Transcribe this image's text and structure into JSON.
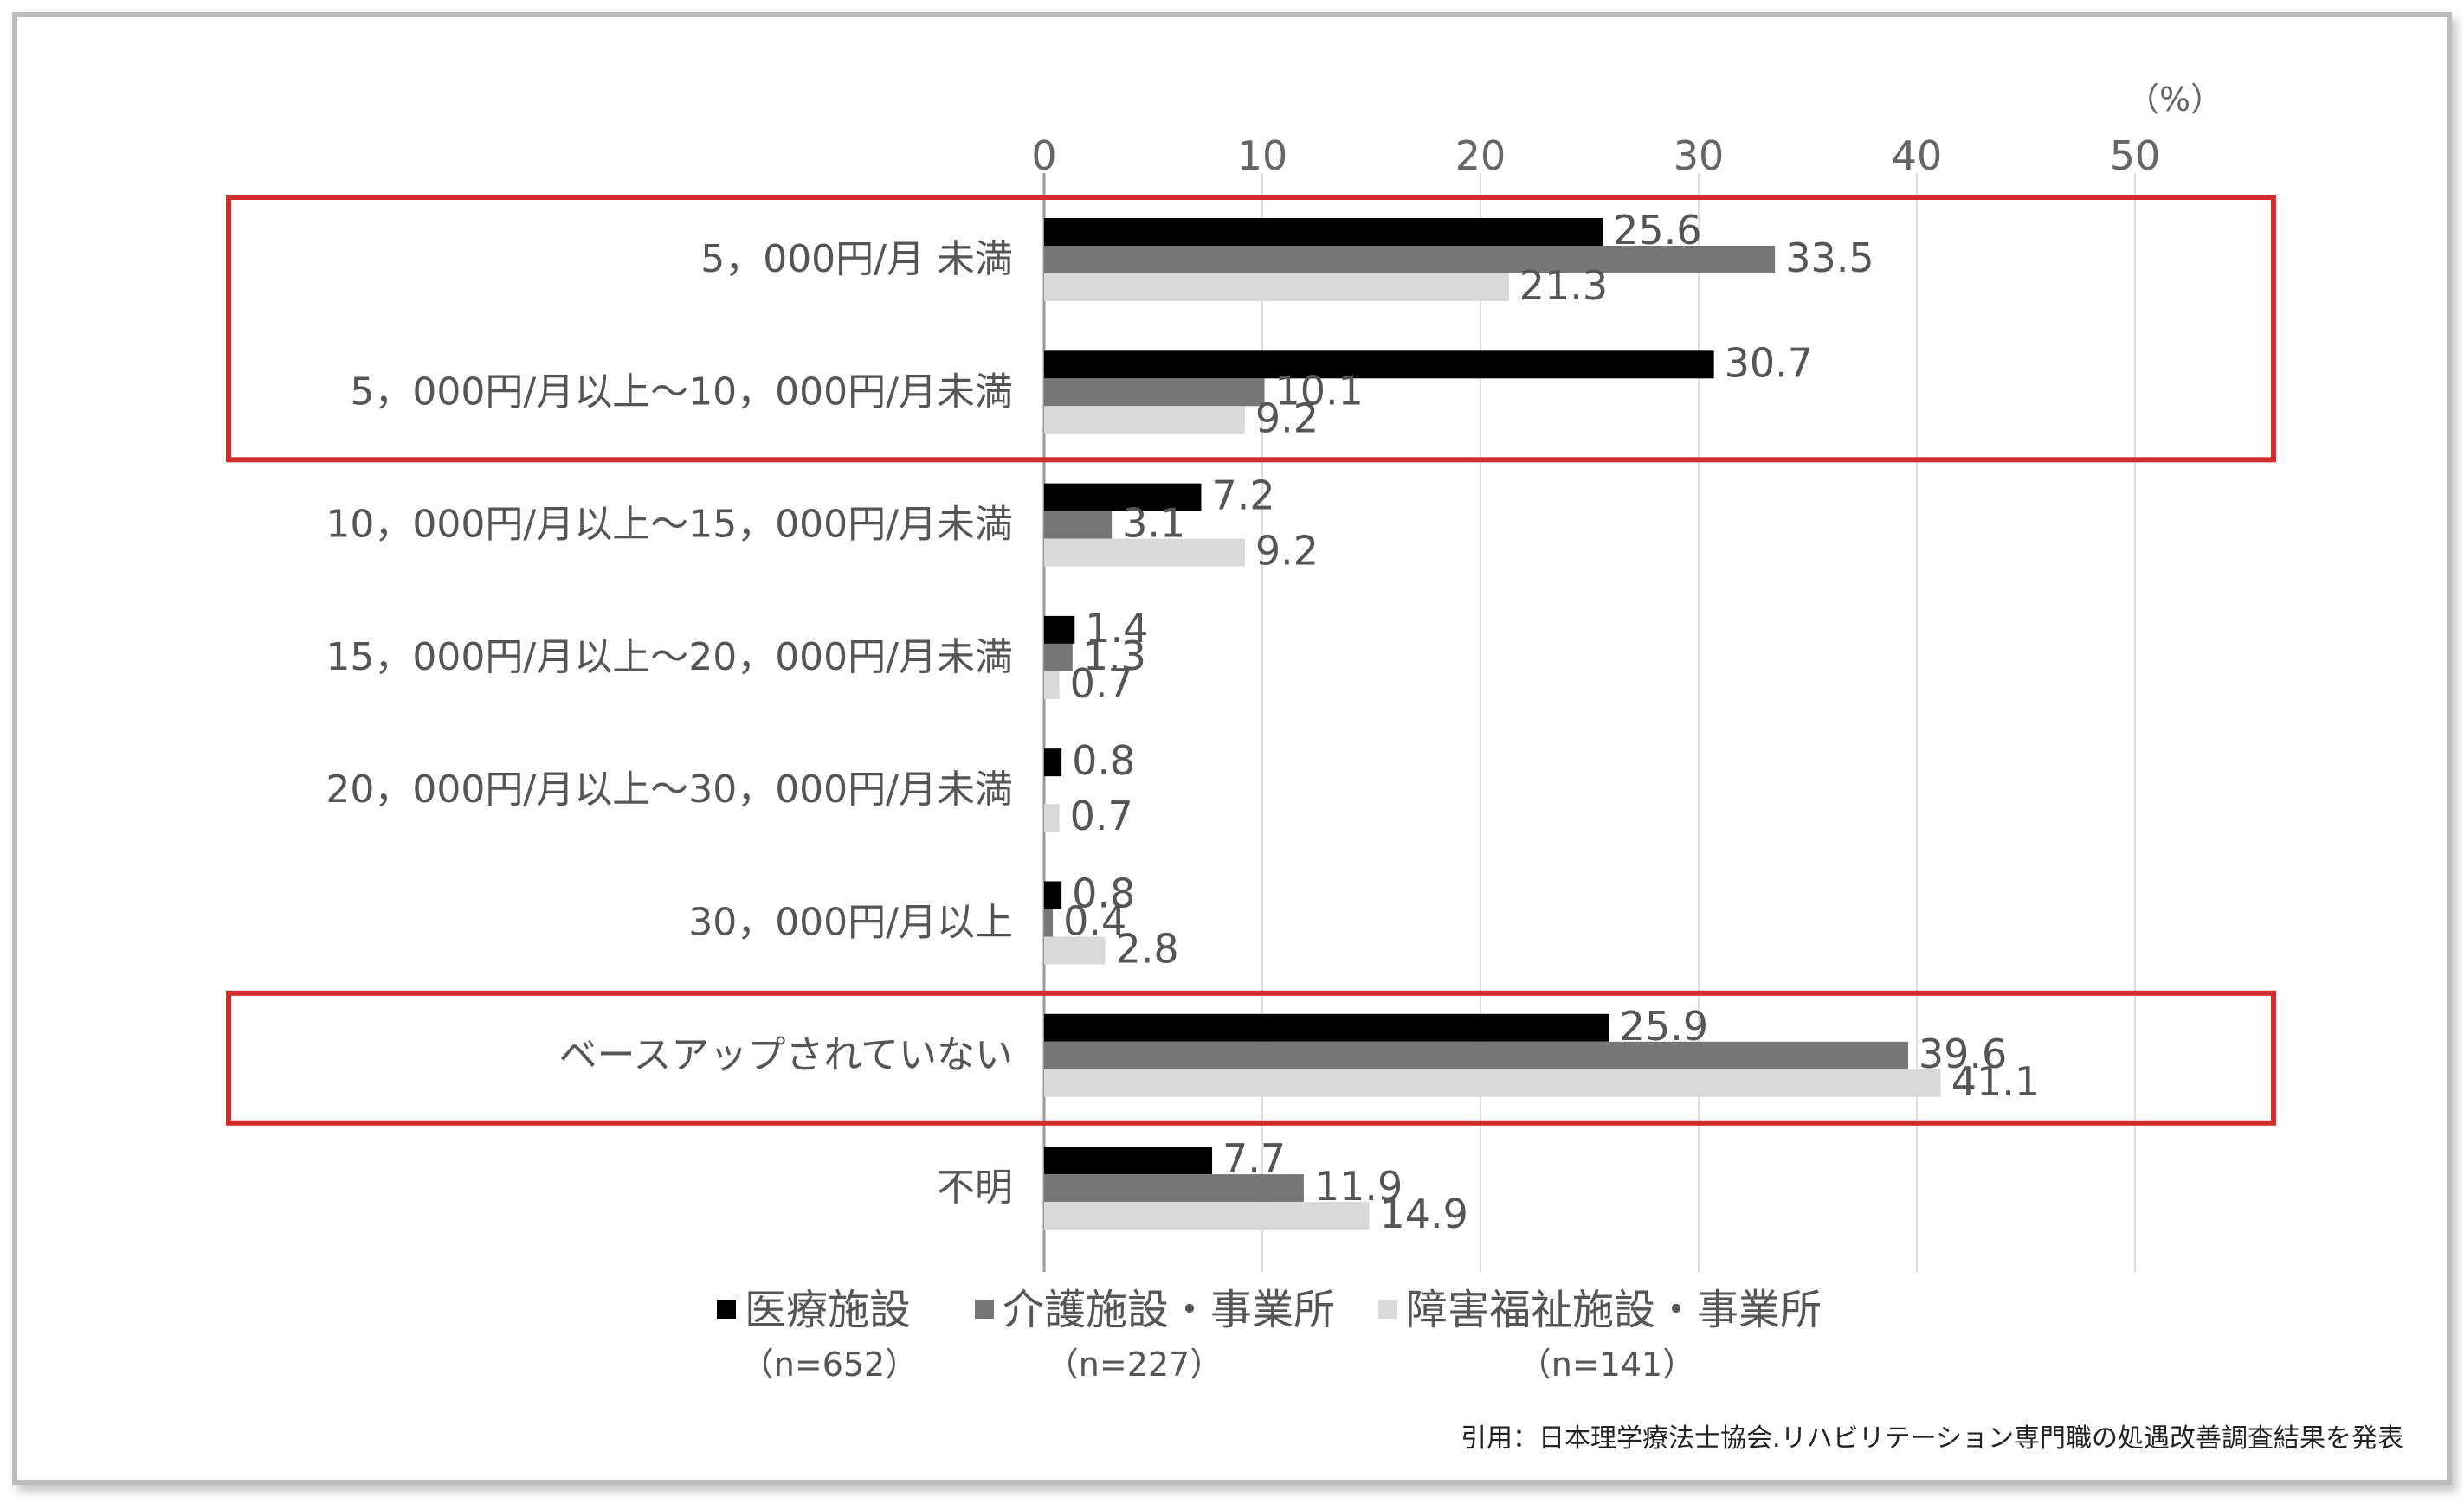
{
  "chart_data": {
    "type": "bar",
    "orientation": "horizontal",
    "unit_label": "（%）",
    "x_ticks": [
      0,
      10,
      20,
      30,
      40,
      50
    ],
    "xlim": [
      0,
      55
    ],
    "grid": true,
    "categories": [
      "5，000円/月 未満",
      "5，000円/月以上～10，000円/月未満",
      "10，000円/月以上～15，000円/月未満",
      "15，000円/月以上～20，000円/月未満",
      "20，000円/月以上～30，000円/月未満",
      "30，000円/月以上",
      "ベースアップされていない",
      "不明"
    ],
    "series": [
      {
        "name": "医療施設",
        "n_label": "（n=652）",
        "color": "#000000",
        "values": [
          25.6,
          30.7,
          7.2,
          1.4,
          0.8,
          0.8,
          25.9,
          7.7
        ],
        "labels": [
          "25.6",
          "30.7",
          "7.2",
          "1.4",
          "0.8",
          "0.8",
          "25.9",
          "7.7"
        ]
      },
      {
        "name": "介護施設・事業所",
        "n_label": "（n=227）",
        "color": "#767676",
        "values": [
          33.5,
          10.1,
          3.1,
          1.3,
          0,
          0.4,
          39.6,
          11.9
        ],
        "labels": [
          "33.5",
          "10.1",
          "3.1",
          "1.3",
          "",
          "0.4",
          "39.6",
          "11.9"
        ]
      },
      {
        "name": "障害福祉施設・事業所",
        "n_label": "（n=141）",
        "color": "#d9d9d9",
        "values": [
          21.3,
          9.2,
          9.2,
          0.7,
          0.7,
          2.8,
          41.1,
          14.9
        ],
        "labels": [
          "21.3",
          "9.2",
          "9.2",
          "0.7",
          "0.7",
          "2.8",
          "41.1",
          "14.9"
        ]
      }
    ],
    "highlight_color": "#d42b2b",
    "highlight_groups": [
      [
        0,
        1
      ],
      [
        6,
        6
      ]
    ],
    "legend_position": "bottom"
  },
  "source_text": "引用：日本理学療法士協会.リハビリテーション専門職の処遇改善調査結果を発表"
}
